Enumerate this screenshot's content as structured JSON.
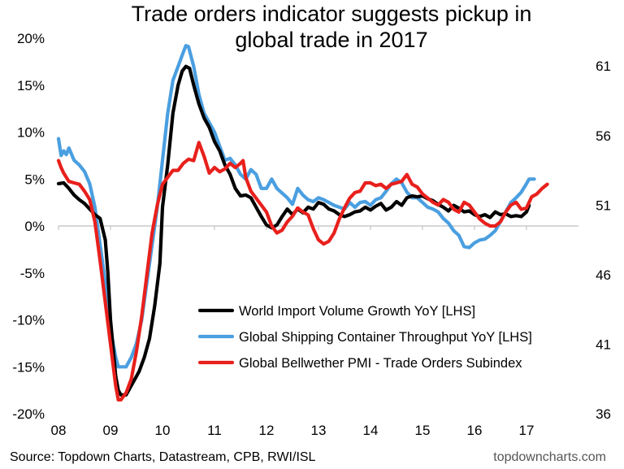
{
  "chart_data": {
    "type": "line",
    "title_lines": [
      "Trade orders indicator suggests pickup in",
      "global trade in 2017"
    ],
    "source": "Source: Topdown Charts, Datastream, CPB, RWI/ISL",
    "watermark": "topdowncharts.com",
    "x_ticks": [
      "08",
      "09",
      "10",
      "11",
      "12",
      "13",
      "14",
      "15",
      "16",
      "17"
    ],
    "y_left": {
      "ticks": [
        "20%",
        "15%",
        "10%",
        "5%",
        "0%",
        "-5%",
        "-10%",
        "-15%",
        "-20%"
      ],
      "range": [
        -20,
        20
      ],
      "unit": "%"
    },
    "y_right": {
      "ticks": [
        "61",
        "56",
        "51",
        "46",
        "41",
        "36"
      ],
      "range": [
        36,
        63
      ]
    },
    "legend": {
      "placement": "bottom-right"
    },
    "grid": false,
    "series": [
      {
        "name": "World Import Volume Growth YoY [LHS]",
        "axis": "left",
        "color": "#000000",
        "points": [
          [
            2008.0,
            4.5
          ],
          [
            2008.1,
            4.6
          ],
          [
            2008.2,
            4.0
          ],
          [
            2008.3,
            3.3
          ],
          [
            2008.4,
            2.8
          ],
          [
            2008.5,
            2.4
          ],
          [
            2008.6,
            1.8
          ],
          [
            2008.7,
            1.2
          ],
          [
            2008.8,
            0.8
          ],
          [
            2008.9,
            -1.5
          ],
          [
            2008.95,
            -5.0
          ],
          [
            2009.0,
            -10.0
          ],
          [
            2009.05,
            -13.0
          ],
          [
            2009.1,
            -16.0
          ],
          [
            2009.15,
            -17.5
          ],
          [
            2009.2,
            -18.0
          ],
          [
            2009.3,
            -18.0
          ],
          [
            2009.35,
            -17.5
          ],
          [
            2009.45,
            -16.5
          ],
          [
            2009.55,
            -15.5
          ],
          [
            2009.65,
            -14.0
          ],
          [
            2009.75,
            -12.0
          ],
          [
            2009.85,
            -8.5
          ],
          [
            2009.95,
            -4.0
          ],
          [
            2010.0,
            2.0
          ],
          [
            2010.1,
            6.5
          ],
          [
            2010.2,
            12.0
          ],
          [
            2010.3,
            15.0
          ],
          [
            2010.38,
            16.5
          ],
          [
            2010.45,
            17.0
          ],
          [
            2010.52,
            16.8
          ],
          [
            2010.6,
            15.0
          ],
          [
            2010.7,
            13.0
          ],
          [
            2010.8,
            11.5
          ],
          [
            2010.9,
            10.5
          ],
          [
            2011.0,
            9.0
          ],
          [
            2011.1,
            8.0
          ],
          [
            2011.2,
            6.5
          ],
          [
            2011.3,
            5.5
          ],
          [
            2011.4,
            4.0
          ],
          [
            2011.5,
            3.2
          ],
          [
            2011.6,
            3.3
          ],
          [
            2011.7,
            3.0
          ],
          [
            2011.8,
            2.0
          ],
          [
            2011.9,
            1.0
          ],
          [
            2012.0,
            0.1
          ],
          [
            2012.1,
            -0.2
          ],
          [
            2012.2,
            0.1
          ],
          [
            2012.3,
            1.0
          ],
          [
            2012.4,
            1.8
          ],
          [
            2012.5,
            1.2
          ],
          [
            2012.6,
            1.8
          ],
          [
            2012.7,
            1.4
          ],
          [
            2012.8,
            2.0
          ],
          [
            2012.9,
            1.8
          ],
          [
            2013.0,
            2.5
          ],
          [
            2013.1,
            2.3
          ],
          [
            2013.2,
            1.8
          ],
          [
            2013.3,
            1.6
          ],
          [
            2013.4,
            1.2
          ],
          [
            2013.5,
            1.0
          ],
          [
            2013.6,
            1.2
          ],
          [
            2013.7,
            1.5
          ],
          [
            2013.8,
            1.6
          ],
          [
            2013.9,
            2.0
          ],
          [
            2014.0,
            1.7
          ],
          [
            2014.1,
            2.1
          ],
          [
            2014.2,
            2.4
          ],
          [
            2014.3,
            1.7
          ],
          [
            2014.4,
            2.0
          ],
          [
            2014.5,
            2.6
          ],
          [
            2014.6,
            2.2
          ],
          [
            2014.7,
            3.0
          ],
          [
            2014.8,
            3.2
          ],
          [
            2014.9,
            3.1
          ],
          [
            2015.0,
            3.2
          ],
          [
            2015.1,
            2.9
          ],
          [
            2015.2,
            2.7
          ],
          [
            2015.3,
            2.3
          ],
          [
            2015.4,
            2.0
          ],
          [
            2015.5,
            1.6
          ],
          [
            2015.6,
            2.2
          ],
          [
            2015.7,
            1.9
          ],
          [
            2015.8,
            1.5
          ],
          [
            2015.9,
            1.6
          ],
          [
            2016.0,
            1.2
          ],
          [
            2016.1,
            1.0
          ],
          [
            2016.2,
            1.2
          ],
          [
            2016.3,
            0.9
          ],
          [
            2016.4,
            1.5
          ],
          [
            2016.5,
            1.2
          ],
          [
            2016.6,
            1.3
          ],
          [
            2016.7,
            1.0
          ],
          [
            2016.8,
            1.1
          ],
          [
            2016.9,
            1.0
          ],
          [
            2017.0,
            1.5
          ],
          [
            2017.05,
            2.2
          ]
        ]
      },
      {
        "name": "Global Shipping Container Throughput YoY [LHS]",
        "axis": "left",
        "color": "#4a9fe0",
        "points": [
          [
            2008.0,
            9.3
          ],
          [
            2008.05,
            7.5
          ],
          [
            2008.1,
            8.0
          ],
          [
            2008.15,
            7.6
          ],
          [
            2008.2,
            8.3
          ],
          [
            2008.3,
            7.0
          ],
          [
            2008.4,
            6.5
          ],
          [
            2008.5,
            5.8
          ],
          [
            2008.6,
            4.5
          ],
          [
            2008.7,
            2.0
          ],
          [
            2008.8,
            -2.0
          ],
          [
            2008.9,
            -6.0
          ],
          [
            2009.0,
            -11.0
          ],
          [
            2009.1,
            -14.0
          ],
          [
            2009.15,
            -15.0
          ],
          [
            2009.2,
            -15.0
          ],
          [
            2009.3,
            -15.0
          ],
          [
            2009.4,
            -14.0
          ],
          [
            2009.5,
            -12.5
          ],
          [
            2009.6,
            -10.0
          ],
          [
            2009.7,
            -6.0
          ],
          [
            2009.8,
            -2.0
          ],
          [
            2009.9,
            2.0
          ],
          [
            2010.0,
            7.0
          ],
          [
            2010.1,
            12.0
          ],
          [
            2010.2,
            15.5
          ],
          [
            2010.3,
            17.0
          ],
          [
            2010.4,
            18.5
          ],
          [
            2010.45,
            19.2
          ],
          [
            2010.5,
            19.1
          ],
          [
            2010.6,
            17.0
          ],
          [
            2010.7,
            14.0
          ],
          [
            2010.8,
            12.0
          ],
          [
            2010.9,
            11.0
          ],
          [
            2011.0,
            10.0
          ],
          [
            2011.1,
            8.5
          ],
          [
            2011.2,
            7.0
          ],
          [
            2011.3,
            7.2
          ],
          [
            2011.4,
            6.5
          ],
          [
            2011.5,
            5.5
          ],
          [
            2011.6,
            5.0
          ],
          [
            2011.7,
            6.0
          ],
          [
            2011.8,
            5.5
          ],
          [
            2011.9,
            4.0
          ],
          [
            2012.0,
            4.0
          ],
          [
            2012.1,
            5.0
          ],
          [
            2012.2,
            4.0
          ],
          [
            2012.3,
            3.5
          ],
          [
            2012.4,
            3.0
          ],
          [
            2012.5,
            2.3
          ],
          [
            2012.6,
            4.0
          ],
          [
            2012.7,
            3.3
          ],
          [
            2012.8,
            2.8
          ],
          [
            2012.9,
            2.6
          ],
          [
            2013.0,
            3.0
          ],
          [
            2013.1,
            2.8
          ],
          [
            2013.2,
            2.5
          ],
          [
            2013.3,
            2.2
          ],
          [
            2013.4,
            2.0
          ],
          [
            2013.5,
            1.8
          ],
          [
            2013.6,
            2.5
          ],
          [
            2013.7,
            2.0
          ],
          [
            2013.8,
            2.5
          ],
          [
            2013.9,
            2.6
          ],
          [
            2014.0,
            2.2
          ],
          [
            2014.1,
            2.8
          ],
          [
            2014.2,
            3.0
          ],
          [
            2014.3,
            3.7
          ],
          [
            2014.4,
            4.5
          ],
          [
            2014.5,
            5.0
          ],
          [
            2014.6,
            4.6
          ],
          [
            2014.7,
            3.6
          ],
          [
            2014.8,
            3.0
          ],
          [
            2014.9,
            3.0
          ],
          [
            2015.0,
            2.5
          ],
          [
            2015.1,
            2.0
          ],
          [
            2015.2,
            1.8
          ],
          [
            2015.3,
            1.5
          ],
          [
            2015.4,
            0.8
          ],
          [
            2015.5,
            0.3
          ],
          [
            2015.6,
            -0.5
          ],
          [
            2015.7,
            -1.0
          ],
          [
            2015.8,
            -2.2
          ],
          [
            2015.9,
            -2.3
          ],
          [
            2016.0,
            -1.8
          ],
          [
            2016.1,
            -1.5
          ],
          [
            2016.2,
            -1.4
          ],
          [
            2016.3,
            -1.0
          ],
          [
            2016.4,
            -0.5
          ],
          [
            2016.5,
            0.5
          ],
          [
            2016.6,
            1.5
          ],
          [
            2016.7,
            2.5
          ],
          [
            2016.8,
            3.0
          ],
          [
            2016.9,
            3.6
          ],
          [
            2017.0,
            4.5
          ],
          [
            2017.05,
            5.0
          ],
          [
            2017.15,
            5.0
          ]
        ]
      },
      {
        "name": "Global Bellwether PMI - Trade Orders Subindex",
        "axis": "right",
        "color": "#e8201c",
        "points": [
          [
            2008.0,
            54.2
          ],
          [
            2008.05,
            53.7
          ],
          [
            2008.1,
            53.3
          ],
          [
            2008.15,
            53.0
          ],
          [
            2008.2,
            52.7
          ],
          [
            2008.3,
            52.6
          ],
          [
            2008.4,
            52.5
          ],
          [
            2008.5,
            52.0
          ],
          [
            2008.6,
            51.4
          ],
          [
            2008.7,
            49.8
          ],
          [
            2008.8,
            47.0
          ],
          [
            2008.9,
            44.0
          ],
          [
            2009.0,
            41.0
          ],
          [
            2009.1,
            38.0
          ],
          [
            2009.15,
            37.0
          ],
          [
            2009.2,
            37.0
          ],
          [
            2009.3,
            37.5
          ],
          [
            2009.4,
            38.5
          ],
          [
            2009.5,
            40.5
          ],
          [
            2009.6,
            43.0
          ],
          [
            2009.7,
            46.0
          ],
          [
            2009.8,
            49.0
          ],
          [
            2009.9,
            51.0
          ],
          [
            2010.0,
            52.5
          ],
          [
            2010.1,
            53.0
          ],
          [
            2010.2,
            53.5
          ],
          [
            2010.3,
            53.5
          ],
          [
            2010.4,
            54.0
          ],
          [
            2010.5,
            54.3
          ],
          [
            2010.6,
            54.2
          ],
          [
            2010.7,
            55.5
          ],
          [
            2010.8,
            54.5
          ],
          [
            2010.9,
            53.3
          ],
          [
            2011.0,
            53.7
          ],
          [
            2011.1,
            53.4
          ],
          [
            2011.2,
            53.6
          ],
          [
            2011.3,
            54.0
          ],
          [
            2011.4,
            53.7
          ],
          [
            2011.5,
            54.0
          ],
          [
            2011.55,
            54.2
          ],
          [
            2011.6,
            53.0
          ],
          [
            2011.7,
            52.0
          ],
          [
            2011.8,
            51.5
          ],
          [
            2011.9,
            51.0
          ],
          [
            2012.0,
            50.5
          ],
          [
            2012.1,
            49.5
          ],
          [
            2012.2,
            49.0
          ],
          [
            2012.3,
            49.2
          ],
          [
            2012.4,
            49.8
          ],
          [
            2012.5,
            50.2
          ],
          [
            2012.6,
            50.8
          ],
          [
            2012.7,
            50.5
          ],
          [
            2012.8,
            50.3
          ],
          [
            2012.9,
            49.3
          ],
          [
            2013.0,
            48.5
          ],
          [
            2013.1,
            48.2
          ],
          [
            2013.2,
            48.4
          ],
          [
            2013.3,
            49.0
          ],
          [
            2013.4,
            50.0
          ],
          [
            2013.5,
            50.8
          ],
          [
            2013.6,
            51.5
          ],
          [
            2013.7,
            51.9
          ],
          [
            2013.8,
            52.0
          ],
          [
            2013.9,
            52.6
          ],
          [
            2014.0,
            52.6
          ],
          [
            2014.1,
            52.4
          ],
          [
            2014.2,
            52.5
          ],
          [
            2014.3,
            52.2
          ],
          [
            2014.4,
            52.5
          ],
          [
            2014.5,
            52.6
          ],
          [
            2014.6,
            52.7
          ],
          [
            2014.7,
            53.2
          ],
          [
            2014.8,
            52.5
          ],
          [
            2014.9,
            52.3
          ],
          [
            2015.0,
            51.8
          ],
          [
            2015.1,
            51.5
          ],
          [
            2015.2,
            51.2
          ],
          [
            2015.3,
            51.0
          ],
          [
            2015.4,
            51.4
          ],
          [
            2015.5,
            51.2
          ],
          [
            2015.6,
            50.7
          ],
          [
            2015.7,
            50.5
          ],
          [
            2015.8,
            51.2
          ],
          [
            2015.9,
            51.0
          ],
          [
            2016.0,
            50.5
          ],
          [
            2016.1,
            50.0
          ],
          [
            2016.2,
            49.7
          ],
          [
            2016.3,
            49.5
          ],
          [
            2016.4,
            49.5
          ],
          [
            2016.5,
            49.8
          ],
          [
            2016.6,
            50.5
          ],
          [
            2016.7,
            51.0
          ],
          [
            2016.8,
            51.2
          ],
          [
            2016.9,
            50.7
          ],
          [
            2017.0,
            50.8
          ],
          [
            2017.1,
            51.6
          ],
          [
            2017.2,
            51.8
          ],
          [
            2017.3,
            52.2
          ],
          [
            2017.4,
            52.5
          ]
        ]
      }
    ]
  }
}
